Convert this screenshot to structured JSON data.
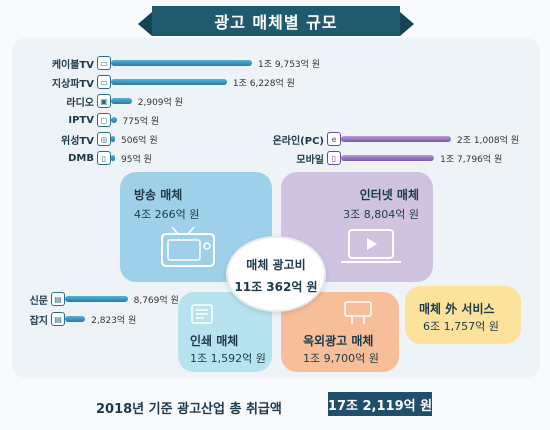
{
  "title": "광고 매체별 규모",
  "chart_data": {
    "type": "bar",
    "unit": "억 원",
    "left_bars": [
      {
        "label": "케이블TV",
        "value": 19753,
        "text": "1조 9,753억 원"
      },
      {
        "label": "지상파TV",
        "value": 16228,
        "text": "1조 6,228억 원"
      },
      {
        "label": "라디오",
        "value": 2909,
        "text": "2,909억 원"
      },
      {
        "label": "IPTV",
        "value": 775,
        "text": "775억 원"
      },
      {
        "label": "위성TV",
        "value": 506,
        "text": "506억 원"
      },
      {
        "label": "DMB",
        "value": 95,
        "text": "95억 원"
      }
    ],
    "right_bars": [
      {
        "label": "온라인(PC)",
        "value": 21008,
        "text": "2조 1,008억 원"
      },
      {
        "label": "모바일",
        "value": 17796,
        "text": "1조 7,796억 원"
      }
    ],
    "print_bars": [
      {
        "label": "신문",
        "value": 8769,
        "text": "8,769억 원"
      },
      {
        "label": "잡지",
        "value": 2823,
        "text": "2,823억 원"
      }
    ],
    "categories": [
      {
        "name": "방송 매체",
        "text": "4조 266억 원"
      },
      {
        "name": "인터넷 매체",
        "text": "3조 8,804억 원"
      },
      {
        "name": "인쇄 매체",
        "text": "1조 1,592억 원"
      },
      {
        "name": "옥외광고 매체",
        "text": "1조 9,700억 원"
      },
      {
        "name": "매체 外 서비스",
        "text": "6조 1,757억 원"
      }
    ],
    "center": {
      "name": "매체 광고비",
      "text": "11조 362억 원"
    },
    "total": {
      "label": "2018년 기준 광고산업 총 취급액",
      "text": "17조 2,119억 원"
    }
  },
  "colors": {
    "broadcast": "#9fd0ea",
    "internet": "#cfc3df",
    "print": "#b7e3ef",
    "outdoor": "#f7be9a",
    "service": "#fde29b"
  }
}
